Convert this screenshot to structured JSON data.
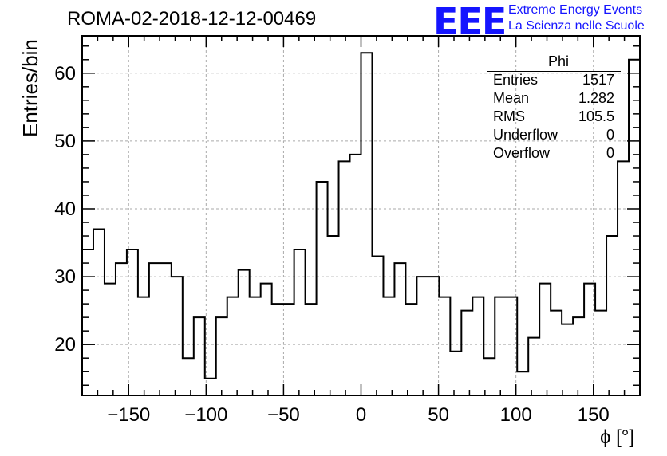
{
  "chart_data": {
    "type": "histogram",
    "title": "ROMA-02-2018-12-12-00469",
    "xlabel": "ϕ [°]",
    "ylabel": "Entries/bin",
    "xlim": [
      -180,
      180
    ],
    "ylim": [
      12.5,
      65.5
    ],
    "bin_width": 7.2,
    "x_ticks": [
      -150,
      -100,
      -50,
      0,
      50,
      100,
      150
    ],
    "x_tick_labels": [
      "−150",
      "−100",
      "−50",
      "0",
      "50",
      "100",
      "150"
    ],
    "y_ticks": [
      20,
      30,
      40,
      50,
      60
    ],
    "y_tick_labels": [
      "20",
      "30",
      "40",
      "50",
      "60"
    ],
    "grid": true,
    "values": [
      34,
      37,
      29,
      32,
      34,
      27,
      32,
      32,
      30,
      18,
      24,
      15,
      24,
      27,
      31,
      27,
      29,
      26,
      26,
      34,
      26,
      44,
      36,
      47,
      48,
      63,
      33,
      27,
      32,
      26,
      30,
      30,
      27,
      19,
      25,
      27,
      18,
      27,
      27,
      16,
      21,
      29,
      25,
      23,
      24,
      29,
      25,
      36,
      47,
      62
    ]
  },
  "stats": {
    "name": "Phi",
    "rows": [
      {
        "label": "Entries",
        "value": "1517"
      },
      {
        "label": "Mean",
        "value": "1.282"
      },
      {
        "label": "RMS",
        "value": "105.5"
      },
      {
        "label": "Underflow",
        "value": "0"
      },
      {
        "label": "Overflow",
        "value": "0"
      }
    ]
  },
  "branding": {
    "logo": "EEE",
    "line1": "Extreme Energy Events",
    "line2": "La Scienza nelle Scuole"
  }
}
